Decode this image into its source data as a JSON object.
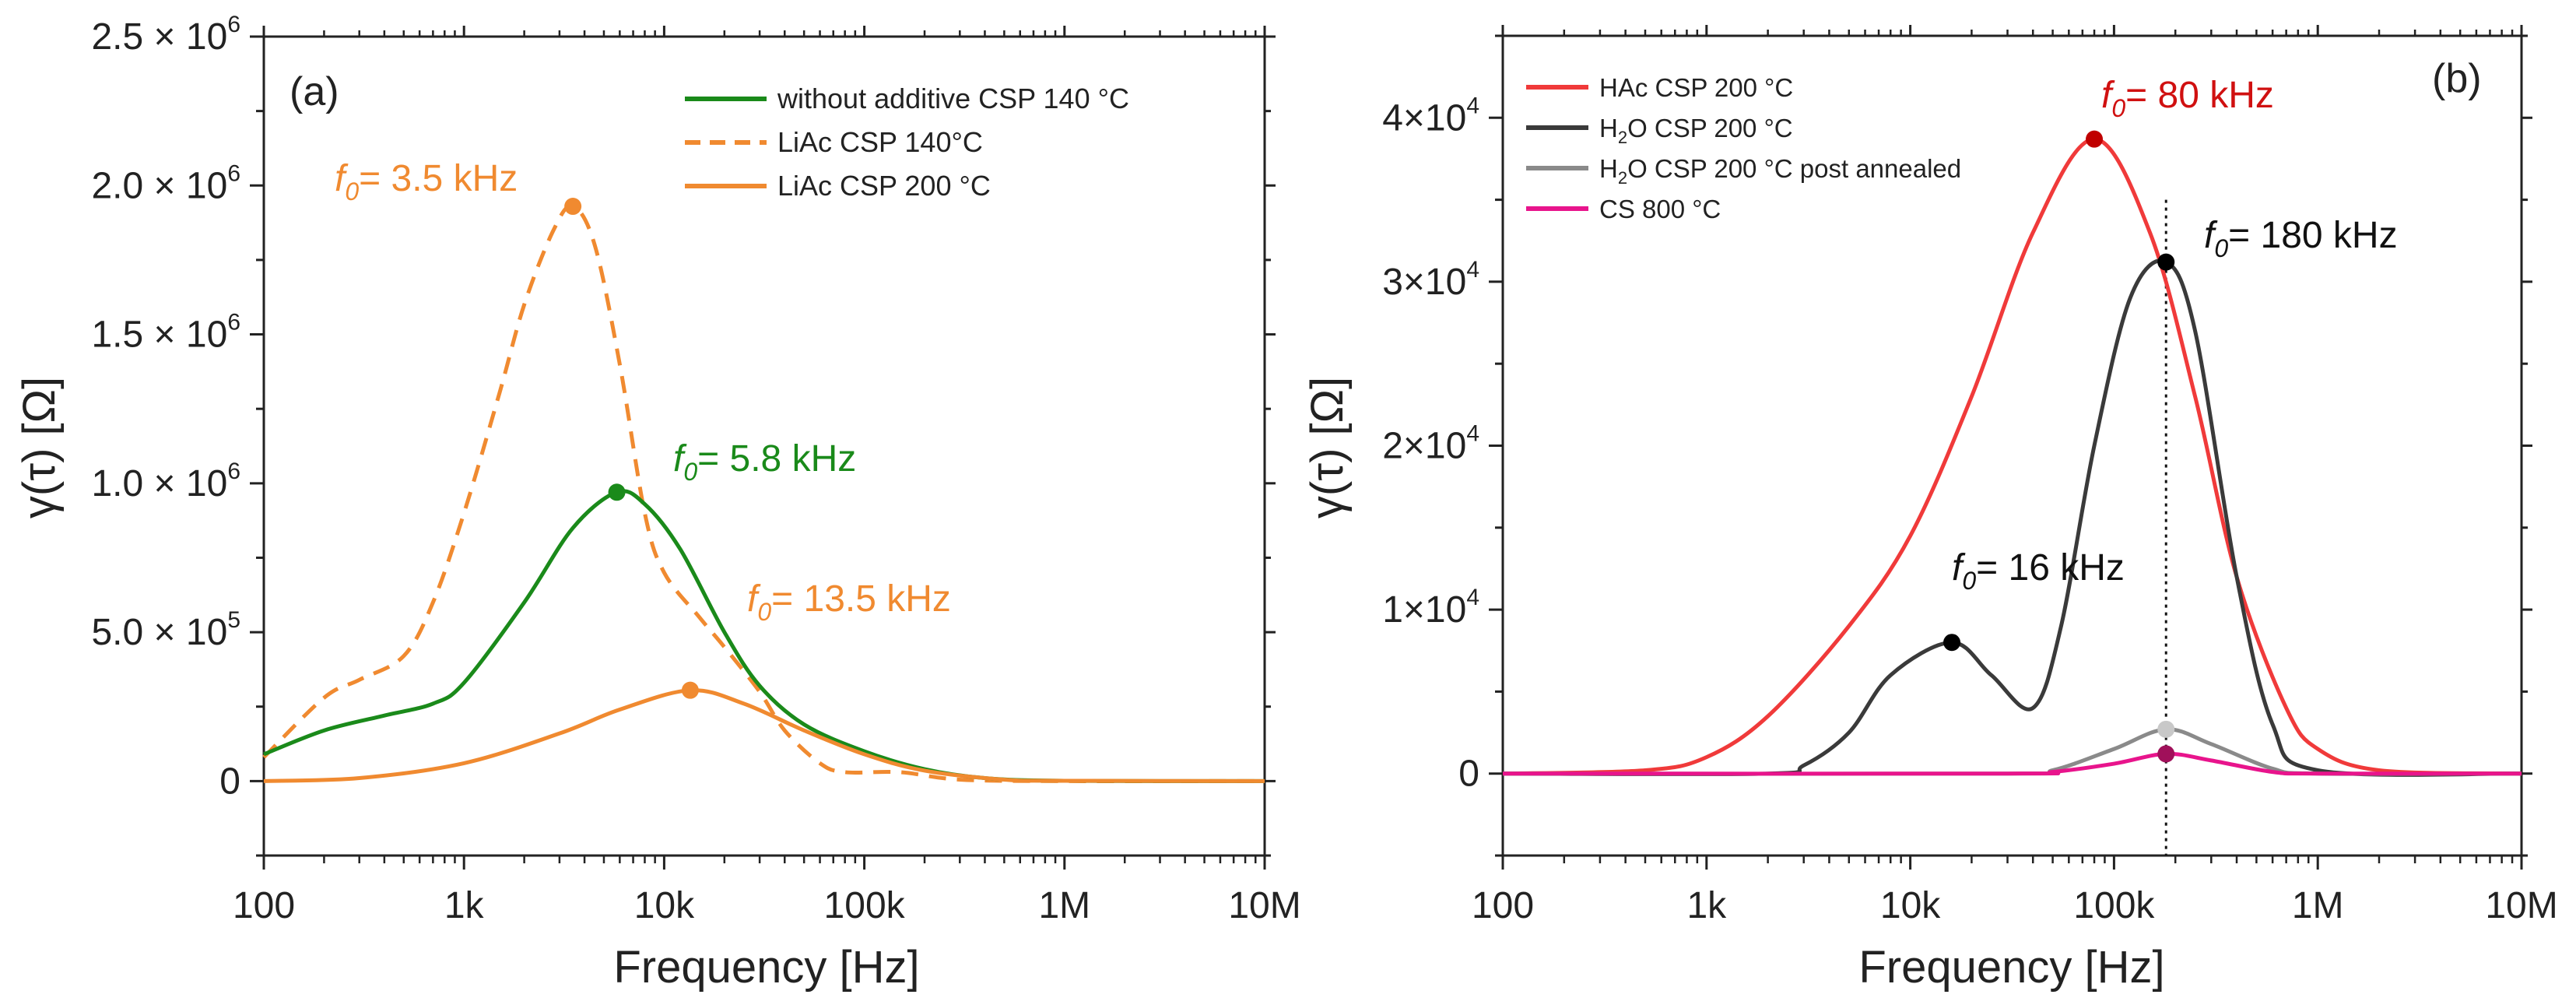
{
  "chart_data": [
    {
      "type": "line",
      "panel_label": "(a)",
      "xlabel": "Frequency [Hz]",
      "ylabel": "γ(τ) [Ω]",
      "xscale": "log",
      "xlim": [
        100,
        10000000
      ],
      "ylim": [
        -250000,
        2500000
      ],
      "xticks": [
        {
          "v": 100,
          "label": "100"
        },
        {
          "v": 1000,
          "label": "1k"
        },
        {
          "v": 10000,
          "label": "10k"
        },
        {
          "v": 100000,
          "label": "100k"
        },
        {
          "v": 1000000,
          "label": "1M"
        },
        {
          "v": 10000000,
          "label": "10M"
        }
      ],
      "yticks": [
        {
          "v": 0,
          "m": "0",
          "e": ""
        },
        {
          "v": 500000,
          "m": "5.0 × 10",
          "e": "5"
        },
        {
          "v": 1000000,
          "m": "1.0 × 10",
          "e": "6"
        },
        {
          "v": 1500000,
          "m": "1.5 × 10",
          "e": "6"
        },
        {
          "v": 2000000,
          "m": "2.0 × 10",
          "e": "6"
        },
        {
          "v": 2500000,
          "m": "2.5 × 10",
          "e": "6"
        }
      ],
      "legend_position": "top-right",
      "series": [
        {
          "name": "without additive CSP 140 °C",
          "color": "#1a8a1a",
          "dash": false,
          "x": [
            100,
            200,
            400,
            700,
            1000,
            2000,
            3500,
            5800,
            8000,
            12000,
            20000,
            30000,
            50000,
            100000,
            200000,
            400000,
            1000000,
            10000000
          ],
          "y": [
            90000,
            170000,
            220000,
            260000,
            330000,
            600000,
            850000,
            970000,
            930000,
            780000,
            500000,
            320000,
            190000,
            100000,
            40000,
            10000,
            1000,
            0
          ],
          "peak": {
            "x": 5800,
            "y": 970000,
            "label_prefix": "f",
            "label_sub": "0",
            "label_text": "= 5.8 kHz"
          }
        },
        {
          "name": "LiAc CSP 140°C",
          "color": "#f08a30",
          "dash": true,
          "x": [
            100,
            200,
            300,
            500,
            700,
            1000,
            1500,
            2000,
            2800,
            3500,
            4500,
            6000,
            8000,
            10000,
            15000,
            20000,
            30000,
            40000,
            60000,
            80000,
            150000,
            300000,
            1000000,
            10000000
          ],
          "y": [
            80000,
            280000,
            340000,
            420000,
            600000,
            900000,
            1300000,
            1600000,
            1850000,
            1930000,
            1800000,
            1400000,
            900000,
            700000,
            550000,
            450000,
            300000,
            170000,
            60000,
            30000,
            30000,
            5000,
            0,
            0
          ],
          "peak": {
            "x": 3500,
            "y": 1930000,
            "label_prefix": "f",
            "label_sub": "0",
            "label_text": "= 3.5 kHz"
          }
        },
        {
          "name": "LiAc CSP 200 °C",
          "color": "#f08a30",
          "dash": false,
          "x": [
            100,
            300,
            1000,
            3000,
            6000,
            13500,
            25000,
            50000,
            100000,
            200000,
            500000,
            1000000,
            10000000
          ],
          "y": [
            0,
            10000,
            60000,
            160000,
            240000,
            305000,
            260000,
            170000,
            90000,
            35000,
            5000,
            1000,
            0
          ],
          "peak": {
            "x": 13500,
            "y": 305000,
            "label_prefix": "f",
            "label_sub": "0",
            "label_text": "= 13.5 kHz"
          }
        }
      ]
    },
    {
      "type": "line",
      "panel_label": "(b)",
      "xlabel": "Frequency [Hz]",
      "ylabel": "γ(τ) [Ω]",
      "xscale": "log",
      "xlim": [
        100,
        10000000
      ],
      "ylim": [
        -5000,
        45000
      ],
      "xticks": [
        {
          "v": 100,
          "label": "100"
        },
        {
          "v": 1000,
          "label": "1k"
        },
        {
          "v": 10000,
          "label": "10k"
        },
        {
          "v": 100000,
          "label": "100k"
        },
        {
          "v": 1000000,
          "label": "1M"
        },
        {
          "v": 10000000,
          "label": "10M"
        }
      ],
      "yticks": [
        {
          "v": 0,
          "m": "0",
          "e": ""
        },
        {
          "v": 10000,
          "m": "1×10",
          "e": "4"
        },
        {
          "v": 20000,
          "m": "2×10",
          "e": "4"
        },
        {
          "v": 30000,
          "m": "3×10",
          "e": "4"
        },
        {
          "v": 40000,
          "m": "4×10",
          "e": "4"
        }
      ],
      "legend_position": "top-left",
      "vline_x": 180000,
      "series": [
        {
          "name": "HAc CSP 200 °C",
          "color": "#f03a3a",
          "dash": false,
          "x": [
            100,
            500,
            1000,
            2000,
            5000,
            10000,
            20000,
            40000,
            80000,
            150000,
            250000,
            400000,
            700000,
            1000000,
            2000000,
            10000000
          ],
          "y": [
            0,
            200,
            1000,
            3500,
            9000,
            14500,
            23000,
            33000,
            38700,
            33000,
            23000,
            12000,
            4000,
            1500,
            200,
            0
          ],
          "peak": {
            "x": 80000,
            "y": 38700,
            "label_prefix": "f",
            "label_sub": "0",
            "label_text": "= 80 kHz",
            "label_color": "#d01010",
            "marker": "#c00000"
          }
        },
        {
          "name": "H₂O CSP 200 °C",
          "name_base": "H",
          "name_sub": "2",
          "name_rest": "O CSP 200 °C",
          "color": "#3a3a3a",
          "dash": false,
          "x": [
            100,
            2000,
            3000,
            5000,
            8000,
            16000,
            25000,
            40000,
            55000,
            80000,
            120000,
            180000,
            250000,
            400000,
            600000,
            1000000,
            10000000
          ],
          "y": [
            0,
            0,
            500,
            2500,
            6000,
            8000,
            6000,
            4000,
            9000,
            20000,
            29000,
            31200,
            27000,
            12000,
            3000,
            200,
            0
          ],
          "peak": {
            "x": 180000,
            "y": 31200,
            "label_prefix": "f",
            "label_sub": "0",
            "label_text": "= 180 kHz",
            "label_color": "#111",
            "marker": "#000"
          },
          "peak2": {
            "x": 16000,
            "y": 8000,
            "label_prefix": "f",
            "label_sub": "0",
            "label_text": "= 16 kHz",
            "label_color": "#111",
            "marker": "#000"
          }
        },
        {
          "name": "H₂O CSP 200 °C post annealed",
          "name_base": "H",
          "name_sub": "2",
          "name_rest": "O CSP 200 °C post annealed",
          "color": "#8a8a8a",
          "dash": false,
          "x": [
            100,
            30000,
            50000,
            100000,
            180000,
            300000,
            600000,
            1000000,
            10000000
          ],
          "y": [
            0,
            0,
            200,
            1500,
            2700,
            1800,
            300,
            0,
            0
          ],
          "peak": {
            "x": 180000,
            "y": 2700,
            "marker": "#c8c8c8"
          }
        },
        {
          "name": "CS 800 °C",
          "color": "#e8148c",
          "dash": false,
          "x": [
            100,
            30000,
            50000,
            100000,
            180000,
            300000,
            600000,
            1000000,
            10000000
          ],
          "y": [
            0,
            0,
            100,
            600,
            1200,
            800,
            100,
            0,
            0
          ],
          "peak": {
            "x": 180000,
            "y": 1200,
            "marker": "#a0105a"
          }
        }
      ]
    }
  ]
}
